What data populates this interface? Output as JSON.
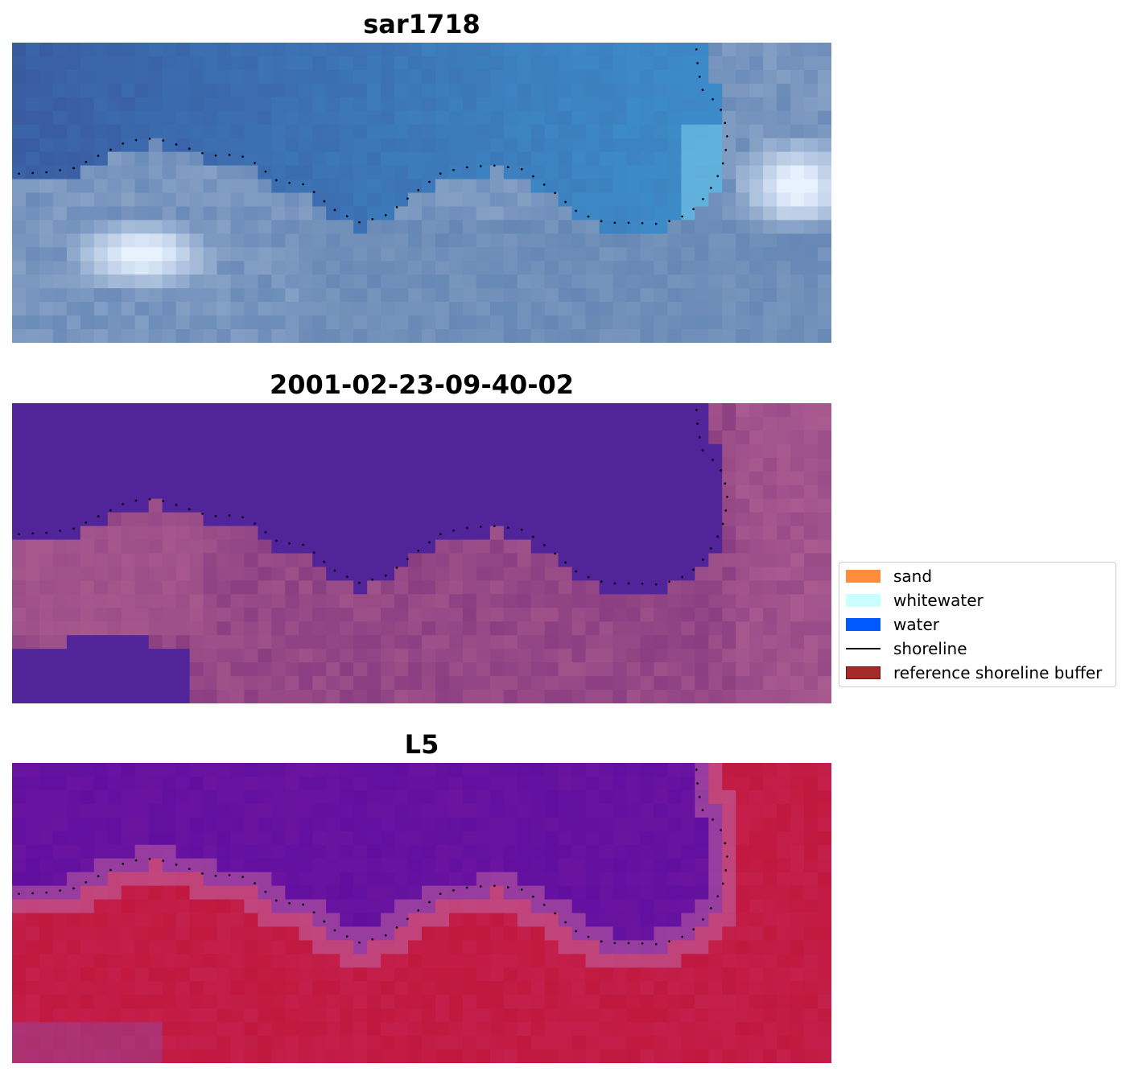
{
  "chart_data": [
    {
      "type": "heatmap",
      "title": "sar1718",
      "content": "RGB image of coastline with detected shoreline (dotted)",
      "shoreline": [
        [
          0.5,
          9.6
        ],
        [
          2.5,
          9.5
        ],
        [
          4.5,
          9.2
        ],
        [
          6.5,
          8.2
        ],
        [
          8.5,
          7.2
        ],
        [
          10.5,
          7.0
        ],
        [
          12.5,
          7.6
        ],
        [
          14.5,
          8.3
        ],
        [
          16.5,
          8.2
        ],
        [
          17.5,
          8.6
        ],
        [
          19.5,
          10.2
        ],
        [
          21.5,
          10.4
        ],
        [
          23.5,
          12.2
        ],
        [
          25.5,
          13.2
        ],
        [
          27.5,
          12.6
        ],
        [
          29.5,
          11.0
        ],
        [
          31.5,
          9.5
        ],
        [
          33.5,
          9.1
        ],
        [
          35.5,
          9.0
        ],
        [
          37.5,
          9.3
        ],
        [
          39.5,
          10.8
        ],
        [
          41.5,
          12.5
        ],
        [
          43.5,
          13.2
        ],
        [
          45.5,
          13.2
        ],
        [
          47.5,
          13.3
        ],
        [
          49.5,
          12.6
        ],
        [
          50.5,
          11.6
        ],
        [
          51.5,
          10.2
        ],
        [
          52.2,
          8.5
        ],
        [
          52.4,
          6.5
        ],
        [
          51.8,
          4.6
        ],
        [
          50.5,
          3.4
        ],
        [
          50.2,
          1.6
        ],
        [
          50.1,
          0.3
        ]
      ]
    },
    {
      "type": "heatmap",
      "title": "2001-02-23-09-40-02",
      "content": "classified image overlay with shoreline",
      "shoreline": [
        [
          0.5,
          9.6
        ],
        [
          2.5,
          9.5
        ],
        [
          4.5,
          9.2
        ],
        [
          6.5,
          8.2
        ],
        [
          8.5,
          7.2
        ],
        [
          10.5,
          7.0
        ],
        [
          12.5,
          7.6
        ],
        [
          14.5,
          8.3
        ],
        [
          16.5,
          8.2
        ],
        [
          17.5,
          8.6
        ],
        [
          19.5,
          10.2
        ],
        [
          21.5,
          10.4
        ],
        [
          23.5,
          12.2
        ],
        [
          25.5,
          13.2
        ],
        [
          27.5,
          12.6
        ],
        [
          29.5,
          11.0
        ],
        [
          31.5,
          9.5
        ],
        [
          33.5,
          9.1
        ],
        [
          35.5,
          9.0
        ],
        [
          37.5,
          9.3
        ],
        [
          39.5,
          10.8
        ],
        [
          41.5,
          12.5
        ],
        [
          43.5,
          13.2
        ],
        [
          45.5,
          13.2
        ],
        [
          47.5,
          13.3
        ],
        [
          49.5,
          12.6
        ],
        [
          50.5,
          11.6
        ],
        [
          51.5,
          10.2
        ],
        [
          52.2,
          8.5
        ],
        [
          52.4,
          6.5
        ],
        [
          51.8,
          4.6
        ],
        [
          50.5,
          3.4
        ],
        [
          50.2,
          1.6
        ],
        [
          50.1,
          0.3
        ]
      ]
    },
    {
      "type": "heatmap",
      "title": "L5",
      "content": "water index image with shoreline",
      "shoreline": [
        [
          0.5,
          9.6
        ],
        [
          2.5,
          9.5
        ],
        [
          4.5,
          9.2
        ],
        [
          6.5,
          8.2
        ],
        [
          8.5,
          7.2
        ],
        [
          10.5,
          7.0
        ],
        [
          12.5,
          7.6
        ],
        [
          14.5,
          8.3
        ],
        [
          16.5,
          8.2
        ],
        [
          17.5,
          8.6
        ],
        [
          19.5,
          10.2
        ],
        [
          21.5,
          10.4
        ],
        [
          23.5,
          12.2
        ],
        [
          25.5,
          13.2
        ],
        [
          27.5,
          12.6
        ],
        [
          29.5,
          11.0
        ],
        [
          31.5,
          9.5
        ],
        [
          33.5,
          9.1
        ],
        [
          35.5,
          9.0
        ],
        [
          37.5,
          9.3
        ],
        [
          39.5,
          10.8
        ],
        [
          41.5,
          12.5
        ],
        [
          43.5,
          13.2
        ],
        [
          45.5,
          13.2
        ],
        [
          47.5,
          13.3
        ],
        [
          49.5,
          12.6
        ],
        [
          50.5,
          11.6
        ],
        [
          51.5,
          10.2
        ],
        [
          52.2,
          8.5
        ],
        [
          52.4,
          6.5
        ],
        [
          51.8,
          4.6
        ],
        [
          50.5,
          3.4
        ],
        [
          50.2,
          1.6
        ],
        [
          50.1,
          0.3
        ]
      ]
    }
  ],
  "legend": {
    "placement": "center-right",
    "items": [
      {
        "label": "sand",
        "kind": "patch",
        "color": "#ff8c3a"
      },
      {
        "label": "whitewater",
        "kind": "patch",
        "color": "#c8ffff"
      },
      {
        "label": "water",
        "kind": "patch",
        "color": "#0059ff"
      },
      {
        "label": "shoreline",
        "kind": "line",
        "color": "#000000"
      },
      {
        "label": "reference shoreline buffer",
        "kind": "patch",
        "color": "#a52a2a"
      }
    ]
  },
  "colors": {
    "rgb_water_deep": "#3a5aa0",
    "rgb_water_shallow": "#3d8ac8",
    "rgb_foam": "#e8f2ff",
    "rgb_land": "#6a8ab8",
    "class_water": "#52249a",
    "class_land": "#8a3e82",
    "class_land_light": "#b06090",
    "mndwi_water": "#6a14a0",
    "mndwi_edge": "#c060a0",
    "mndwi_land": "#c0183e"
  }
}
